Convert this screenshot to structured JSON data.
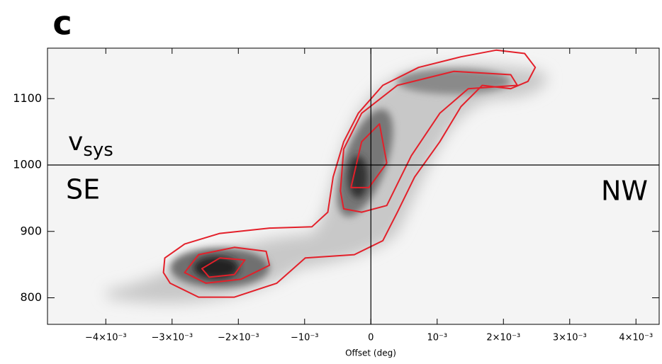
{
  "chart_data": {
    "type": "contour",
    "title": "c",
    "xlabel": "Offset (deg)",
    "annotations": {
      "vsys": {
        "main": "v",
        "sub": "sys"
      },
      "left": "SE",
      "right": "NW"
    },
    "reference_lines": {
      "x": 0,
      "y": 1000
    },
    "xlim": [
      -0.00488,
      0.00435
    ],
    "ylim": [
      760,
      1176
    ],
    "xticks": [
      {
        "value": -0.004,
        "label": "−4×10⁻³"
      },
      {
        "value": -0.003,
        "label": "−3×10⁻³"
      },
      {
        "value": -0.002,
        "label": "−2×10⁻³"
      },
      {
        "value": -0.001,
        "label": "−10⁻³"
      },
      0,
      {
        "value": 0.001,
        "label": "10⁻³"
      },
      {
        "value": 0.002,
        "label": "2×10⁻³"
      },
      {
        "value": 0.003,
        "label": "3×10⁻³"
      },
      {
        "value": 0.004,
        "label": "4×10⁻³"
      }
    ],
    "yticks": [
      800,
      900,
      1000,
      1100
    ],
    "series": [
      {
        "color": "#e3202a",
        "x": [
          -0.00313,
          -0.00311,
          -0.00281,
          -0.00228,
          -0.00153,
          -0.00089,
          -0.00065,
          -0.00057,
          -0.00041,
          -0.00019,
          0.00018,
          0.00072,
          0.00136,
          0.00189,
          0.00232,
          0.00248,
          0.00237,
          0.00211,
          0.00168,
          0.00136,
          0.00104,
          0.00066,
          0.0004,
          0.00018,
          -0.00025,
          -0.00099,
          -0.00142,
          -0.00206,
          -0.0026,
          -0.00303
        ],
        "values": [
          838,
          860,
          881,
          897,
          905,
          907,
          929,
          982,
          1035,
          1078,
          1120,
          1147,
          1163,
          1173,
          1168,
          1147,
          1126,
          1115,
          1120,
          1088,
          1035,
          982,
          929,
          886,
          865,
          860,
          822,
          801,
          801,
          822
        ]
      },
      {
        "color": "#e3202a",
        "x": [
          -0.00046,
          -0.00041,
          -0.00014,
          0.0004,
          0.00125,
          0.00211,
          0.00221,
          0.00147,
          0.00104,
          0.00061,
          0.00024,
          -0.00014,
          -0.00041
        ],
        "values": [
          961,
          1024,
          1078,
          1120,
          1141,
          1136,
          1120,
          1115,
          1078,
          1014,
          939,
          929,
          934
        ]
      },
      {
        "color": "#e3202a",
        "x": [
          -0.00281,
          -0.0026,
          -0.00206,
          -0.00158,
          -0.00153,
          -0.00196,
          -0.00249
        ],
        "values": [
          838,
          865,
          876,
          870,
          849,
          828,
          822
        ]
      },
      {
        "color": "#e3202a",
        "x": [
          -0.00255,
          -0.00228,
          -0.0019,
          -0.00206,
          -0.00244
        ],
        "values": [
          844,
          860,
          857,
          835,
          831
        ]
      },
      {
        "color": "#e3202a",
        "x": [
          -0.0003,
          -0.00014,
          0.00013,
          0.00024,
          -3e-05
        ],
        "values": [
          966,
          1035,
          1062,
          1003,
          966
        ]
      }
    ]
  }
}
